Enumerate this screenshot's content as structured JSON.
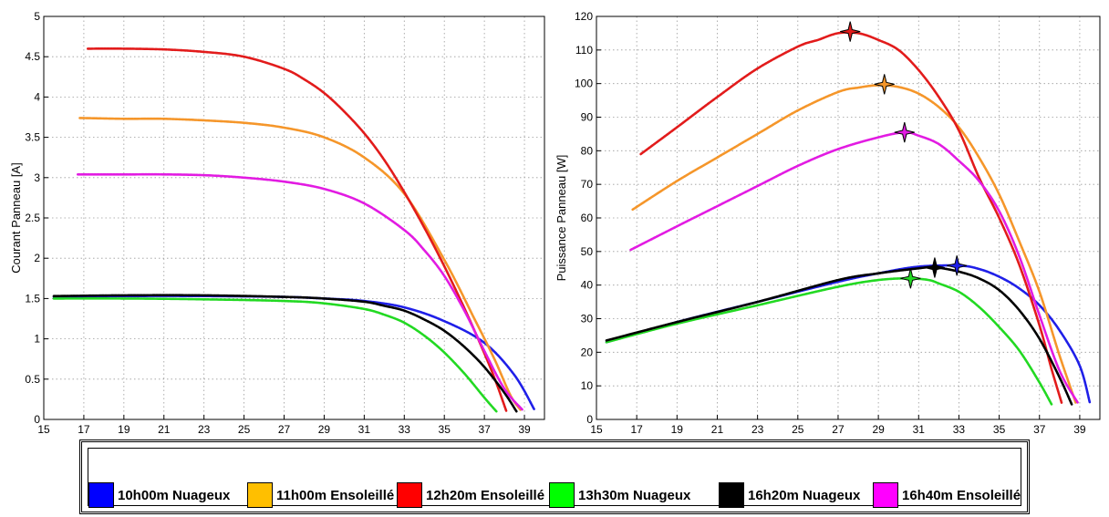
{
  "colors": {
    "10h00m Nuageux": "#1f1fe8",
    "11h00m Ensoleillé": "#f5962a",
    "12h20m Ensoleillé": "#e21b1b",
    "13h30m Nuageux": "#22d922",
    "16h20m Nuageux": "#000000",
    "16h40m Ensoleillé": "#e21be2"
  },
  "legend_swatch_colors": {
    "10h00m Nuageux": "#0000ff",
    "11h00m Ensoleillé": "#ffbf00",
    "12h20m Ensoleillé": "#ff0000",
    "13h30m Nuageux": "#00ff00",
    "16h20m Nuageux": "#000000",
    "16h40m Ensoleillé": "#ff00ff"
  },
  "legend": [
    "10h00m Nuageux",
    "11h00m Ensoleillé",
    "12h20m Ensoleillé",
    "13h30m Nuageux",
    "16h20m Nuageux",
    "16h40m Ensoleillé"
  ],
  "chart_data": [
    {
      "type": "line",
      "title": "",
      "xlabel": "Tension Panneau   [V]",
      "ylabel": "Courant Panneau   [A]",
      "xlim": [
        15,
        40
      ],
      "ylim": [
        0,
        5
      ],
      "xticks": [
        15,
        17,
        19,
        21,
        23,
        25,
        27,
        29,
        31,
        33,
        35,
        37,
        39
      ],
      "yticks": [
        0,
        0.5,
        1,
        1.5,
        2,
        2.5,
        3,
        3.5,
        4,
        4.5,
        5
      ],
      "ytick_labels": [
        "0",
        "0.5",
        "1",
        "1.5",
        "2",
        "2.5",
        "3",
        "3.5",
        "4",
        "4.5",
        "5"
      ],
      "grid": true,
      "series": [
        {
          "name": "10h00m Nuageux",
          "x": [
            15.5,
            19,
            23,
            27,
            29,
            31,
            33,
            35,
            37,
            38.5,
            39.5
          ],
          "y": [
            1.52,
            1.53,
            1.53,
            1.52,
            1.5,
            1.47,
            1.39,
            1.22,
            0.95,
            0.55,
            0.12
          ]
        },
        {
          "name": "11h00m Ensoleillé",
          "x": [
            16.8,
            19,
            21,
            23,
            25,
            27,
            29,
            31,
            33,
            35,
            36.5,
            37.5,
            38.3,
            38.8
          ],
          "y": [
            3.74,
            3.73,
            3.73,
            3.71,
            3.68,
            3.62,
            3.5,
            3.25,
            2.8,
            1.98,
            1.25,
            0.75,
            0.3,
            0.12
          ]
        },
        {
          "name": "12h20m Ensoleillé",
          "x": [
            17.2,
            19,
            21,
            23,
            25,
            27,
            28,
            29,
            30,
            31,
            32,
            33,
            34,
            35,
            36,
            37,
            37.6,
            38.1
          ],
          "y": [
            4.6,
            4.6,
            4.59,
            4.56,
            4.5,
            4.35,
            4.22,
            4.05,
            3.82,
            3.55,
            3.22,
            2.82,
            2.38,
            1.9,
            1.38,
            0.82,
            0.45,
            0.1
          ]
        },
        {
          "name": "13h30m Nuageux",
          "x": [
            15.5,
            19,
            23,
            27,
            29,
            31,
            32,
            33,
            34,
            35,
            36,
            37,
            37.6
          ],
          "y": [
            1.5,
            1.5,
            1.49,
            1.47,
            1.44,
            1.37,
            1.3,
            1.2,
            1.04,
            0.83,
            0.57,
            0.27,
            0.1
          ]
        },
        {
          "name": "16h20m Nuageux",
          "x": [
            15.5,
            19,
            23,
            27,
            29,
            31,
            32,
            33,
            34,
            35,
            36,
            37,
            38,
            38.6
          ],
          "y": [
            1.53,
            1.54,
            1.54,
            1.52,
            1.5,
            1.46,
            1.41,
            1.35,
            1.24,
            1.1,
            0.9,
            0.65,
            0.33,
            0.1
          ]
        },
        {
          "name": "16h40m Ensoleillé",
          "x": [
            16.7,
            19,
            21,
            23,
            25,
            27,
            29,
            31,
            33,
            34,
            35,
            36,
            37,
            38,
            38.9
          ],
          "y": [
            3.04,
            3.04,
            3.04,
            3.03,
            3.0,
            2.95,
            2.86,
            2.68,
            2.35,
            2.1,
            1.78,
            1.35,
            0.85,
            0.38,
            0.12
          ]
        }
      ]
    },
    {
      "type": "line",
      "title": "",
      "xlabel": "Tension Panneau [V]",
      "ylabel": "Puissance Panneau [W]",
      "xlim": [
        15,
        40
      ],
      "ylim": [
        0,
        120
      ],
      "xticks": [
        15,
        17,
        19,
        21,
        23,
        25,
        27,
        29,
        31,
        33,
        35,
        37,
        39
      ],
      "yticks": [
        0,
        10,
        20,
        30,
        40,
        50,
        60,
        70,
        80,
        90,
        100,
        110,
        120
      ],
      "ytick_labels": [
        "0",
        "10",
        "20",
        "30",
        "40",
        "50",
        "60",
        "70",
        "80",
        "90",
        "100",
        "110",
        "120"
      ],
      "grid": true,
      "series": [
        {
          "name": "10h00m Nuageux",
          "x": [
            15.5,
            19,
            23,
            27,
            29,
            31,
            33,
            34,
            35,
            36,
            37,
            38,
            39,
            39.5
          ],
          "y": [
            23,
            29,
            35,
            41,
            43.5,
            45.5,
            45.8,
            44.8,
            42.5,
            39,
            34,
            26.5,
            16,
            5
          ]
        },
        {
          "name": "11h00m Ensoleillé",
          "x": [
            16.8,
            19,
            21,
            23,
            25,
            27,
            28,
            29,
            30,
            31,
            32,
            33,
            34,
            35,
            36,
            37,
            38,
            38.8
          ],
          "y": [
            62.5,
            71,
            78,
            85,
            92,
            97.5,
            98.8,
            99.5,
            99,
            97,
            93,
            87,
            78,
            67,
            53,
            38,
            19,
            5
          ]
        },
        {
          "name": "12h20m Ensoleillé",
          "x": [
            17.2,
            19,
            21,
            23,
            25,
            26,
            27,
            28,
            29,
            30,
            31,
            32,
            33,
            34,
            35,
            36,
            37,
            37.6,
            38.1
          ],
          "y": [
            79,
            87,
            96,
            104.5,
            111,
            113,
            115,
            115,
            113,
            110,
            104,
            96,
            86,
            72,
            60,
            46,
            28,
            15,
            5
          ]
        },
        {
          "name": "13h30m Nuageux",
          "x": [
            15.5,
            19,
            23,
            27,
            29,
            30.5,
            31.5,
            32,
            33,
            34,
            35,
            36,
            37,
            37.6
          ],
          "y": [
            23,
            28.5,
            34,
            39.5,
            41.5,
            42,
            41.5,
            40.5,
            38,
            33.5,
            27.5,
            20.5,
            11,
            4.5
          ]
        },
        {
          "name": "16h20m Nuageux",
          "x": [
            15.5,
            19,
            23,
            27,
            29,
            31,
            31.8,
            33,
            34,
            35,
            36,
            37,
            38,
            38.6
          ],
          "y": [
            23.5,
            29,
            35,
            41.5,
            43.5,
            45,
            45.3,
            44,
            42,
            38.5,
            32.5,
            24,
            12.5,
            4.5
          ]
        },
        {
          "name": "16h40m Ensoleillé",
          "x": [
            16.7,
            19,
            21,
            23,
            25,
            27,
            29,
            30.3,
            31,
            32,
            33,
            34,
            35,
            36,
            37,
            38,
            38.9
          ],
          "y": [
            50.5,
            57.5,
            63.5,
            69.5,
            75.5,
            80.5,
            84,
            85.5,
            84.5,
            82,
            77,
            71,
            62,
            48.5,
            31,
            14.5,
            5
          ]
        }
      ],
      "markers": [
        {
          "series": "12h20m Ensoleillé",
          "x": 27.6,
          "y": 115.5
        },
        {
          "series": "11h00m Ensoleillé",
          "x": 29.3,
          "y": 99.8
        },
        {
          "series": "16h40m Ensoleillé",
          "x": 30.3,
          "y": 85.5
        },
        {
          "series": "16h20m Nuageux",
          "x": 31.8,
          "y": 45.2
        },
        {
          "series": "10h00m Nuageux",
          "x": 32.9,
          "y": 45.8
        },
        {
          "series": "13h30m Nuageux",
          "x": 30.6,
          "y": 42
        }
      ]
    }
  ]
}
